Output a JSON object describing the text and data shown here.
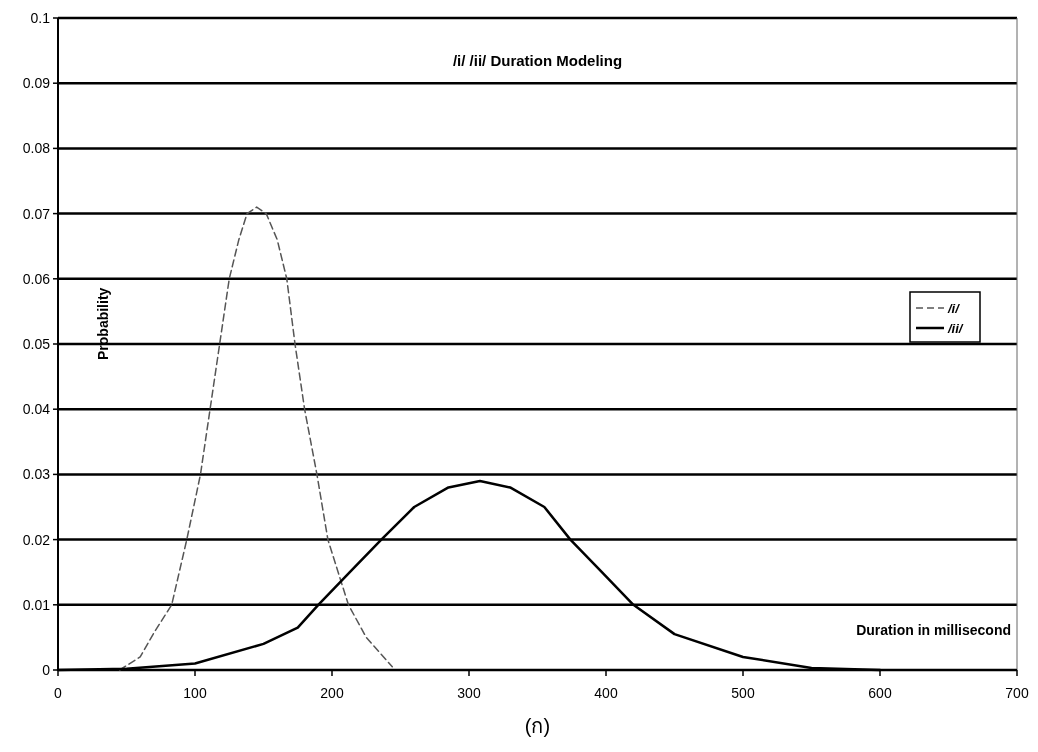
{
  "chart_data": {
    "type": "line",
    "title": "/i/ /ii/ Duration Modeling",
    "xlabel": "Duration in millisecond",
    "ylabel": "Probability",
    "annotations": [
      "(ก)"
    ],
    "xlim": [
      0,
      700
    ],
    "ylim": [
      0,
      0.1
    ],
    "xticks": [
      0,
      100,
      200,
      300,
      400,
      500,
      600,
      700
    ],
    "yticks": [
      0,
      0.01,
      0.02,
      0.03,
      0.04,
      0.05,
      0.06,
      0.07,
      0.08,
      0.09,
      0.1
    ],
    "grid": "y",
    "legend": "right",
    "marker": "none",
    "series": [
      {
        "name": "/i/",
        "color": "#555555",
        "line_style": "dashed",
        "x": [
          45,
          60,
          70,
          83,
          94,
          104,
          111,
          118,
          125,
          132,
          138,
          145,
          152,
          160,
          167,
          173,
          180,
          189,
          197,
          212,
          225,
          244
        ],
        "values": [
          0,
          0.002,
          0.0057,
          0.01,
          0.02,
          0.03,
          0.04,
          0.05,
          0.06,
          0.066,
          0.07,
          0.071,
          0.07,
          0.066,
          0.06,
          0.05,
          0.04,
          0.03,
          0.02,
          0.01,
          0.005,
          0.0005
        ]
      },
      {
        "name": "/ii/",
        "color": "#000000",
        "line_style": "solid",
        "x": [
          0,
          50,
          100,
          150,
          175,
          190,
          213,
          236,
          260,
          285,
          308,
          330,
          355,
          374,
          397,
          420,
          450,
          500,
          550,
          600
        ],
        "values": [
          0,
          0.0002,
          0.001,
          0.004,
          0.0065,
          0.01,
          0.015,
          0.02,
          0.025,
          0.028,
          0.029,
          0.028,
          0.025,
          0.02,
          0.015,
          0.01,
          0.0055,
          0.002,
          0.0003,
          0
        ]
      }
    ]
  }
}
